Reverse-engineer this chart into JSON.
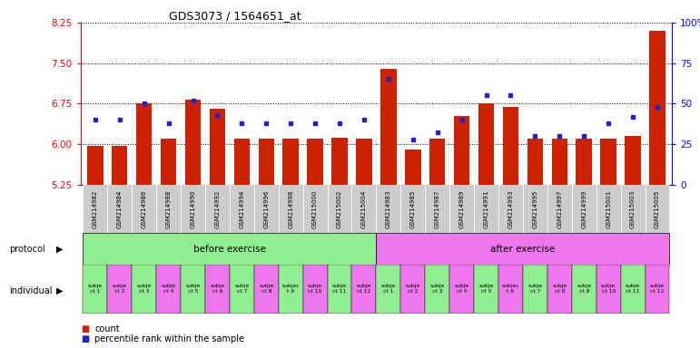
{
  "title": "GDS3073 / 1564651_at",
  "samples": [
    "GSM214982",
    "GSM214984",
    "GSM214986",
    "GSM214988",
    "GSM214990",
    "GSM214992",
    "GSM214994",
    "GSM214996",
    "GSM214998",
    "GSM215000",
    "GSM215002",
    "GSM215004",
    "GSM214983",
    "GSM214985",
    "GSM214987",
    "GSM214989",
    "GSM214991",
    "GSM214993",
    "GSM214995",
    "GSM214997",
    "GSM214999",
    "GSM215001",
    "GSM215003",
    "GSM215005"
  ],
  "counts": [
    5.97,
    5.97,
    6.75,
    6.1,
    6.82,
    6.65,
    6.1,
    6.1,
    6.1,
    6.1,
    6.12,
    6.1,
    7.4,
    5.9,
    6.1,
    6.52,
    6.75,
    6.68,
    6.1,
    6.1,
    6.1,
    6.1,
    6.15,
    8.1
  ],
  "percentiles": [
    40,
    40,
    50,
    38,
    52,
    43,
    38,
    38,
    38,
    38,
    38,
    40,
    65,
    28,
    32,
    40,
    55,
    55,
    30,
    30,
    30,
    38,
    42,
    48
  ],
  "ylim_left": [
    5.25,
    8.25
  ],
  "yticks_left": [
    5.25,
    6.0,
    6.75,
    7.5,
    8.25
  ],
  "ylim_right": [
    0,
    100
  ],
  "yticks_right": [
    0,
    25,
    50,
    75,
    100
  ],
  "bar_color": "#cc2200",
  "dot_color": "#2222cc",
  "before_color": "#90ee90",
  "after_color": "#ee77ee",
  "xcell_color": "#cccccc",
  "protocol_label": "protocol",
  "individual_label": "individual",
  "individuals_before": [
    "subje\nct 1",
    "subje\nct 2",
    "subje\nct 3",
    "subje\nct 4",
    "subje\nct 5",
    "subje\nct 6",
    "subje\nct 7",
    "subje\nct 8",
    "subjec\nt 9",
    "subje\nct 10",
    "subje\nct 11",
    "subje\nct 12"
  ],
  "individuals_after": [
    "subje\nct 1",
    "subje\nct 2",
    "subje\nct 3",
    "subje\nct 4",
    "subje\nct 5",
    "subjec\nt 6",
    "subje\nct 7",
    "subje\nct 8",
    "subje\nct 9",
    "subje\nct 10",
    "subje\nct 11",
    "subje\nct 12"
  ],
  "legend_count": "count",
  "legend_percentile": "percentile rank within the sample",
  "bg_color": "#ffffff"
}
